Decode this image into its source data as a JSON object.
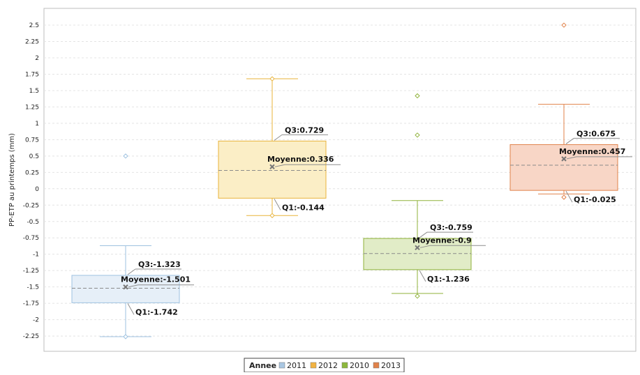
{
  "chart_data": {
    "type": "box",
    "ylabel": "PP-ETP au printemps (mm)",
    "ylim": [
      -2.5,
      2.6
    ],
    "yticks": [
      2.5,
      2.25,
      2,
      1.75,
      1.5,
      1.25,
      1,
      0.75,
      0.5,
      0.25,
      0,
      -0.25,
      -0.5,
      -0.75,
      -1,
      -1.25,
      -1.5,
      -1.75,
      -2,
      -2.25
    ],
    "grid": true,
    "legend": {
      "title": "Annee",
      "placement": "bottom-center",
      "entries": [
        {
          "name": "2011",
          "color": "#a9c7e2"
        },
        {
          "name": "2012",
          "color": "#f2b342"
        },
        {
          "name": "2010",
          "color": "#8db83c"
        },
        {
          "name": "2013",
          "color": "#e0824a"
        }
      ]
    },
    "series": [
      {
        "name": "2011",
        "stroke": "#9ec2e0",
        "fill": "#e6eff8",
        "whisker_low": -2.26,
        "q1": -1.742,
        "median": -1.52,
        "mean": -1.501,
        "q3": -1.323,
        "whisker_high": -0.87,
        "outliers": [
          0.5,
          -2.26
        ],
        "labels": {
          "q3": "Q3:-1.323",
          "mean": "Moyenne:-1.501",
          "q1": "Q1:-1.742"
        }
      },
      {
        "name": "2012",
        "stroke": "#e8b33a",
        "fill": "#fbeec6",
        "whisker_low": -0.41,
        "q1": -0.144,
        "median": 0.28,
        "mean": 0.336,
        "q3": 0.729,
        "whisker_high": 1.68,
        "outliers": [
          1.68,
          -0.41
        ],
        "labels": {
          "q3": "Q3:0.729",
          "mean": "Moyenne:0.336",
          "q1": "Q1:-0.144"
        }
      },
      {
        "name": "2010",
        "stroke": "#8fb23a",
        "fill": "#e1ecc7",
        "whisker_low": -1.6,
        "q1": -1.236,
        "median": -0.99,
        "mean": -0.9,
        "q3": -0.759,
        "whisker_high": -0.18,
        "outliers": [
          1.42,
          0.82,
          -1.64
        ],
        "labels": {
          "q3": "Q3:-0.759",
          "mean": "Moyenne:-0.9",
          "q1": "Q1:-1.236"
        }
      },
      {
        "name": "2013",
        "stroke": "#e0824a",
        "fill": "#f8d6c6",
        "whisker_low": -0.08,
        "q1": -0.025,
        "median": 0.36,
        "mean": 0.457,
        "q3": 0.675,
        "whisker_high": 1.29,
        "outliers": [
          2.5,
          -0.13
        ],
        "labels": {
          "q3": "Q3:0.675",
          "mean": "Moyenne:0.457",
          "q1": "Q1:-0.025"
        }
      }
    ]
  }
}
